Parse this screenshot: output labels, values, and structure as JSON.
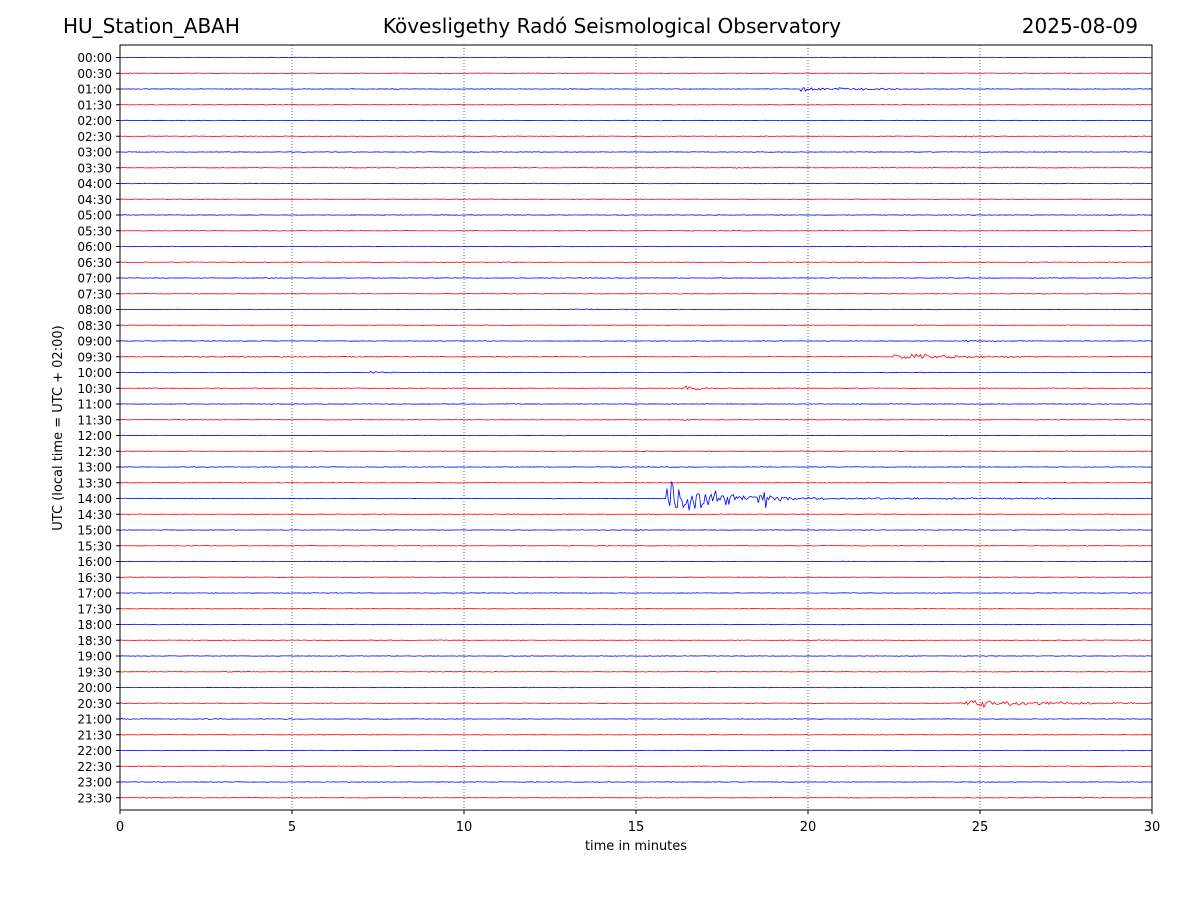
{
  "header": {
    "station": "HU_Station_ABAH",
    "title": "Kövesligethy Radó Seismological Observatory",
    "date": "2025-08-09"
  },
  "chart_data": {
    "type": "line",
    "title": "Kövesligethy Radó Seismological Observatory",
    "xlabel": "time in minutes",
    "ylabel": "UTC (local time = UTC + 02:00)",
    "xlim": [
      0,
      30
    ],
    "xticks": [
      0,
      5,
      10,
      15,
      20,
      25,
      30
    ],
    "grid": "vertical dotted lines at major x ticks",
    "colors": {
      "even_row": "#0000ff",
      "odd_row": "#ff0000",
      "grid": "#000000"
    },
    "rows": [
      "00:00",
      "00:30",
      "01:00",
      "01:30",
      "02:00",
      "02:30",
      "03:00",
      "03:30",
      "04:00",
      "04:30",
      "05:00",
      "05:30",
      "06:00",
      "06:30",
      "07:00",
      "07:30",
      "08:00",
      "08:30",
      "09:00",
      "09:30",
      "10:00",
      "10:30",
      "11:00",
      "11:30",
      "12:00",
      "12:30",
      "13:00",
      "13:30",
      "14:00",
      "14:30",
      "15:00",
      "15:30",
      "16:00",
      "16:30",
      "17:00",
      "17:30",
      "18:00",
      "18:30",
      "19:00",
      "19:30",
      "20:00",
      "20:30",
      "21:00",
      "21:30",
      "22:00",
      "22:30",
      "23:00",
      "23:30"
    ],
    "events": [
      {
        "row": "01:00",
        "start": 19.8,
        "end": 23.0,
        "amp": 0.45
      },
      {
        "row": "03:30",
        "start": 17.7,
        "end": 18.7,
        "amp": 0.12
      },
      {
        "row": "07:00",
        "start": 4.0,
        "end": 5.0,
        "amp": 0.1
      },
      {
        "row": "08:00",
        "start": 13.0,
        "end": 15.0,
        "amp": 0.12
      },
      {
        "row": "09:00",
        "start": 24.6,
        "end": 25.6,
        "amp": 0.15
      },
      {
        "row": "09:30",
        "start": 1.8,
        "end": 12.5,
        "amp": 0.1
      },
      {
        "row": "09:30",
        "start": 22.5,
        "end": 27.0,
        "amp": 0.55
      },
      {
        "row": "10:00",
        "start": 7.2,
        "end": 8.2,
        "amp": 0.25
      },
      {
        "row": "10:30",
        "start": 16.4,
        "end": 17.8,
        "amp": 0.35
      },
      {
        "row": "11:30",
        "start": 16.4,
        "end": 16.8,
        "amp": 0.15
      },
      {
        "row": "14:00",
        "start": 15.9,
        "end": 27.3,
        "amp": 4.0
      },
      {
        "row": "14:30",
        "start": 12.8,
        "end": 13.5,
        "amp": 0.1
      },
      {
        "row": "19:30",
        "start": 3.0,
        "end": 3.9,
        "amp": 0.12
      },
      {
        "row": "20:30",
        "start": 24.4,
        "end": 30.0,
        "amp": 0.75
      },
      {
        "row": "21:00",
        "start": 0.0,
        "end": 1.2,
        "amp": 0.12
      },
      {
        "row": "21:00",
        "start": 2.4,
        "end": 3.0,
        "amp": 0.12
      },
      {
        "row": "21:00",
        "start": 4.8,
        "end": 5.5,
        "amp": 0.15
      }
    ]
  }
}
